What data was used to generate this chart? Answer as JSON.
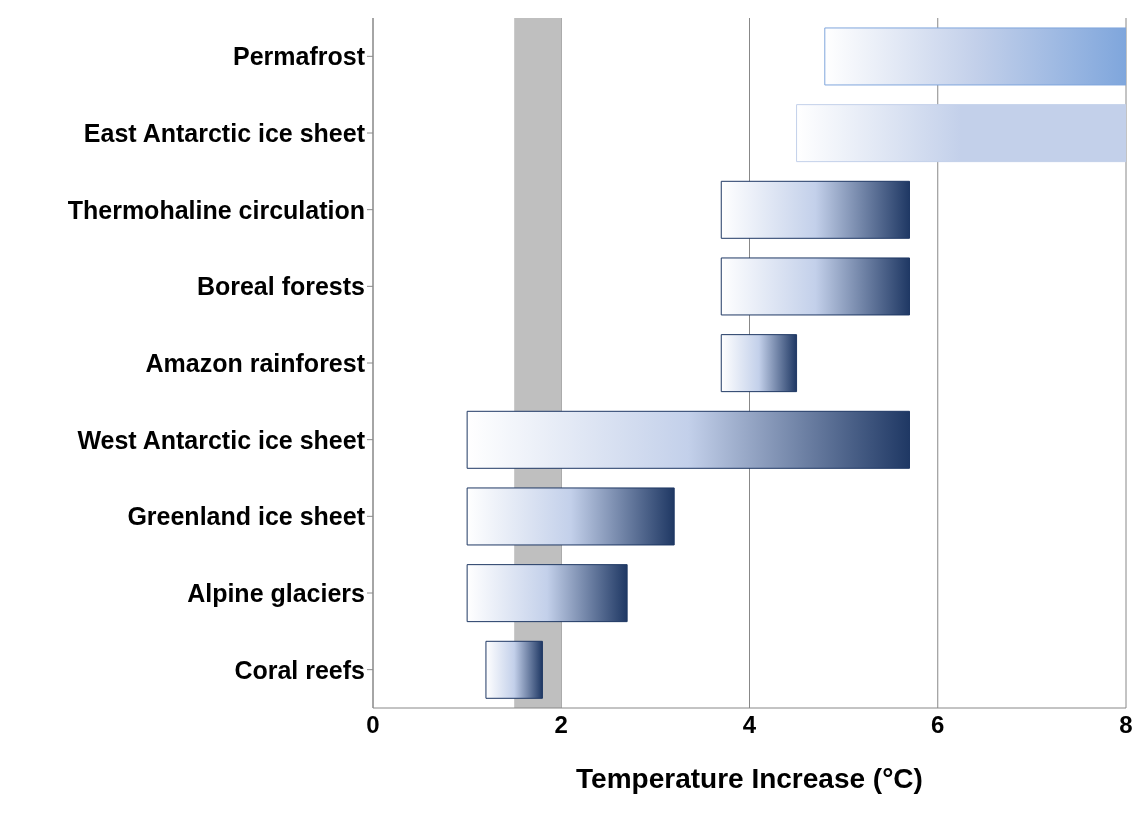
{
  "chart_data": {
    "type": "bar",
    "orientation": "horizontal",
    "xlabel": "Temperature Increase (°C)",
    "categories": [
      "Permafrost",
      "East Antarctic ice sheet",
      "Thermohaline circulation",
      "Boreal forests",
      "Amazon rainforest",
      "West Antarctic ice sheet",
      "Greenland ice sheet",
      "Alpine glaciers",
      "Coral reefs"
    ],
    "base": [
      4.8,
      4.5,
      3.7,
      3.7,
      3.7,
      1.0,
      1.0,
      1.0,
      1.2
    ],
    "values": [
      3.2,
      3.5,
      2.0,
      2.0,
      0.8,
      4.7,
      2.2,
      1.7,
      0.6
    ],
    "colors": [
      "#7fa6dc",
      "#c3d0ea",
      "#1f3864",
      "#1f3864",
      "#1f3864",
      "#1f3864",
      "#1f3864",
      "#1f3864",
      "#1f3864"
    ],
    "xlim": [
      0,
      8
    ],
    "xticks": [
      0,
      2,
      4,
      6,
      8
    ],
    "grid": "x",
    "bands": [
      {
        "axis": "x",
        "from": 1.5,
        "to": 2,
        "color": "#bfbfbf"
      }
    ]
  }
}
